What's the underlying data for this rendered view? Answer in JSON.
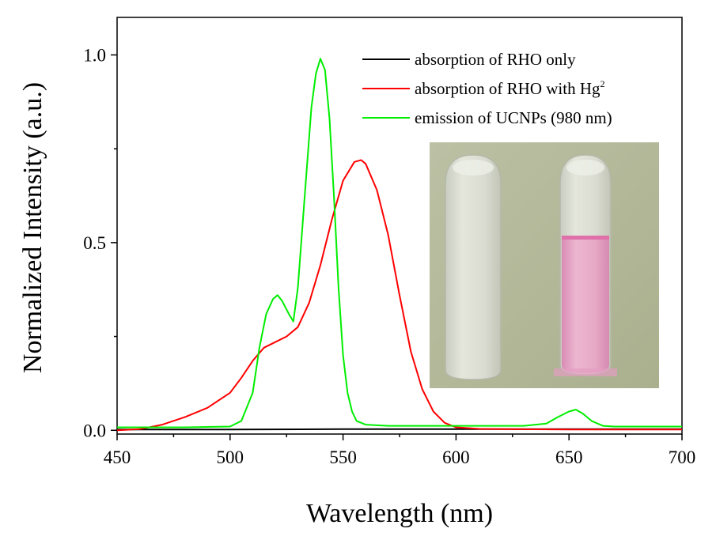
{
  "chart_data": {
    "type": "line",
    "xlabel": "Wavelength (nm)",
    "ylabel": "Normalized Intensity (a.u.)",
    "xlim": [
      450,
      700
    ],
    "ylim": [
      -0.01,
      1.1
    ],
    "x_ticks": [
      450,
      500,
      550,
      600,
      650,
      700
    ],
    "x_tick_labels": [
      "450",
      "500",
      "550",
      "600",
      "650",
      "700"
    ],
    "y_ticks": [
      0.0,
      0.5,
      1.0
    ],
    "y_tick_labels": [
      "0.0",
      "0.5",
      "1.0"
    ],
    "grid": false,
    "legend_position": "top-right",
    "series": [
      {
        "name": "absorption of RHO only",
        "color": "#000000",
        "x": [
          450,
          500,
          550,
          600,
          650,
          700
        ],
        "y": [
          0.002,
          0.002,
          0.003,
          0.003,
          0.003,
          0.003
        ]
      },
      {
        "name": "absorption of RHO with Hg",
        "name_superscript": "2",
        "color": "#ff0000",
        "x": [
          450,
          460,
          470,
          480,
          490,
          500,
          505,
          510,
          515,
          520,
          525,
          530,
          535,
          540,
          545,
          550,
          555,
          558,
          560,
          565,
          570,
          575,
          580,
          585,
          590,
          595,
          600,
          610,
          620,
          650,
          700
        ],
        "y": [
          0.0,
          0.003,
          0.015,
          0.035,
          0.06,
          0.1,
          0.14,
          0.185,
          0.22,
          0.235,
          0.25,
          0.275,
          0.34,
          0.44,
          0.56,
          0.665,
          0.715,
          0.72,
          0.71,
          0.64,
          0.52,
          0.36,
          0.21,
          0.11,
          0.05,
          0.02,
          0.008,
          0.004,
          0.003,
          0.002,
          0.002
        ]
      },
      {
        "name": "emission of UCNPs (980 nm)",
        "color": "#00ee00",
        "x": [
          450,
          480,
          500,
          505,
          510,
          513,
          516,
          519,
          521,
          523,
          526,
          528,
          530,
          533,
          536,
          538,
          540,
          542,
          544,
          546,
          548,
          550,
          552,
          554,
          556,
          560,
          570,
          600,
          630,
          640,
          645,
          650,
          653,
          656,
          660,
          665,
          670,
          700
        ],
        "y": [
          0.008,
          0.008,
          0.01,
          0.025,
          0.1,
          0.22,
          0.31,
          0.35,
          0.36,
          0.345,
          0.31,
          0.29,
          0.38,
          0.62,
          0.86,
          0.95,
          0.99,
          0.96,
          0.83,
          0.62,
          0.38,
          0.2,
          0.1,
          0.05,
          0.025,
          0.015,
          0.012,
          0.012,
          0.012,
          0.018,
          0.035,
          0.05,
          0.055,
          0.045,
          0.025,
          0.012,
          0.01,
          0.01
        ]
      }
    ]
  },
  "inset_photo": {
    "description_colors": {
      "background": "#b9bda0",
      "left_vial_liquid": "#d4d6cc",
      "right_vial_liquid": "#e3a9c4",
      "right_vial_meniscus": "#e276b0"
    }
  }
}
